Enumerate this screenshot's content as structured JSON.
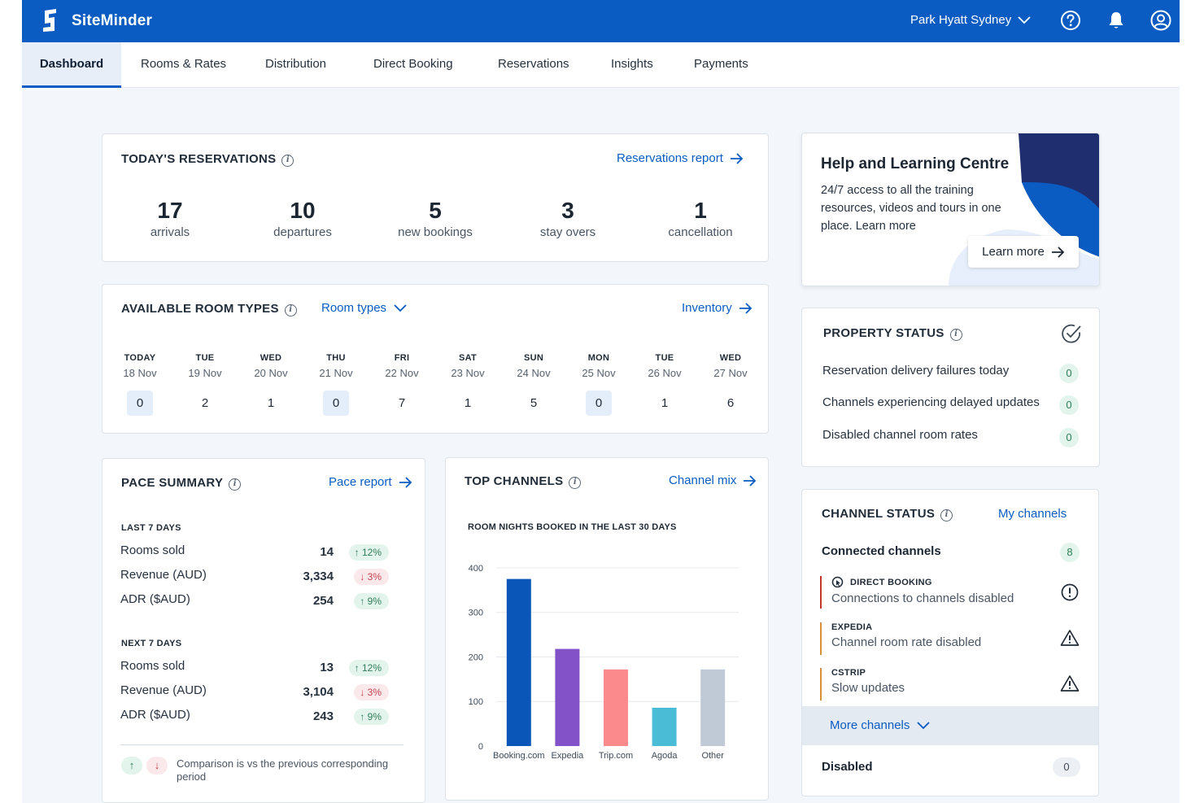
{
  "header": {
    "brand": "SiteMinder",
    "property": "Park Hyatt Sydney",
    "icons": [
      "help-icon",
      "bell-icon",
      "user-icon"
    ]
  },
  "nav": {
    "tabs": [
      {
        "label": "Dashboard",
        "active": true
      },
      {
        "label": "Rooms & Rates"
      },
      {
        "label": "Distribution"
      },
      {
        "label": "Direct Booking"
      },
      {
        "label": "Reservations"
      },
      {
        "label": "Insights"
      },
      {
        "label": "Payments"
      }
    ]
  },
  "reservations": {
    "title": "TODAY'S RESERVATIONS",
    "link": "Reservations report",
    "stats": [
      {
        "value": "17",
        "label": "arrivals"
      },
      {
        "value": "10",
        "label": "departures"
      },
      {
        "value": "5",
        "label": "new bookings"
      },
      {
        "value": "3",
        "label": "stay overs"
      },
      {
        "value": "1",
        "label": "cancellation"
      }
    ]
  },
  "room_types": {
    "title": "AVAILABLE ROOM TYPES",
    "dropdown": "Room types",
    "link": "Inventory",
    "days": [
      {
        "name": "TODAY",
        "date": "18 Nov",
        "value": "0"
      },
      {
        "name": "TUE",
        "date": "19 Nov",
        "value": "2"
      },
      {
        "name": "WED",
        "date": "20 Nov",
        "value": "1"
      },
      {
        "name": "THU",
        "date": "21 Nov",
        "value": "0"
      },
      {
        "name": "FRI",
        "date": "22 Nov",
        "value": "7"
      },
      {
        "name": "SAT",
        "date": "23 Nov",
        "value": "1"
      },
      {
        "name": "SUN",
        "date": "24 Nov",
        "value": "5"
      },
      {
        "name": "MON",
        "date": "25 Nov",
        "value": "0"
      },
      {
        "name": "TUE",
        "date": "26 Nov",
        "value": "1"
      },
      {
        "name": "WED",
        "date": "27 Nov",
        "value": "6"
      }
    ]
  },
  "pace": {
    "title": "PACE SUMMARY",
    "link": "Pace report",
    "last7": {
      "heading": "LAST 7 DAYS",
      "rows": [
        {
          "label": "Rooms sold",
          "value": "14",
          "change": "12%",
          "dir": "up"
        },
        {
          "label": "Revenue (AUD)",
          "value": "3,334",
          "change": "3%",
          "dir": "down"
        },
        {
          "label": "ADR ($AUD)",
          "value": "254",
          "change": "9%",
          "dir": "up"
        }
      ]
    },
    "next7": {
      "heading": "NEXT 7 DAYS",
      "rows": [
        {
          "label": "Rooms sold",
          "value": "13",
          "change": "12%",
          "dir": "up"
        },
        {
          "label": "Revenue (AUD)",
          "value": "3,104",
          "change": "3%",
          "dir": "down"
        },
        {
          "label": "ADR ($AUD)",
          "value": "243",
          "change": "9%",
          "dir": "up"
        }
      ]
    },
    "footnote": "Comparison is vs the previous corresponding period"
  },
  "top_channels": {
    "title": "TOP CHANNELS",
    "link": "Channel mix",
    "subtitle": "ROOM NIGHTS BOOKED IN THE LAST 30 DAYS"
  },
  "chart_data": {
    "type": "bar",
    "categories": [
      "Booking.com",
      "Expedia",
      "Trip.com",
      "Agoda",
      "Other"
    ],
    "values": [
      375,
      218,
      172,
      86,
      172
    ],
    "colors": [
      "#0a56b8",
      "#8452c8",
      "#fb8a8c",
      "#4bbcd6",
      "#bfcad6"
    ],
    "ylim": [
      0,
      420
    ],
    "yticks": [
      0,
      100,
      200,
      300,
      400
    ],
    "grid": true
  },
  "help": {
    "title": "Help and Learning Centre",
    "body": "24/7 access to all the training resources, videos and tours in one place. Learn more",
    "button": "Learn more"
  },
  "property_status": {
    "title": "PROPERTY STATUS",
    "rows": [
      {
        "label": "Reservation delivery failures today",
        "value": "0"
      },
      {
        "label": "Channels experiencing delayed updates",
        "value": "0"
      },
      {
        "label": "Disabled channel room rates",
        "value": "0"
      }
    ]
  },
  "channel_status": {
    "title": "CHANNEL STATUS",
    "link": "My channels",
    "connected_label": "Connected channels",
    "connected_count": "8",
    "items": [
      {
        "name": "DIRECT BOOKING",
        "desc": "Connections to channels disabled",
        "color": "#c0392b",
        "icon": "alert-circle-icon"
      },
      {
        "name": "EXPEDIA",
        "desc": "Channel room rate disabled",
        "color": "#d9903a",
        "icon": "warning-triangle-icon"
      },
      {
        "name": "CSTRIP",
        "desc": "Slow updates",
        "color": "#d9903a",
        "icon": "warning-triangle-icon"
      }
    ],
    "more": "More channels",
    "disabled_label": "Disabled",
    "disabled_count": "0"
  }
}
